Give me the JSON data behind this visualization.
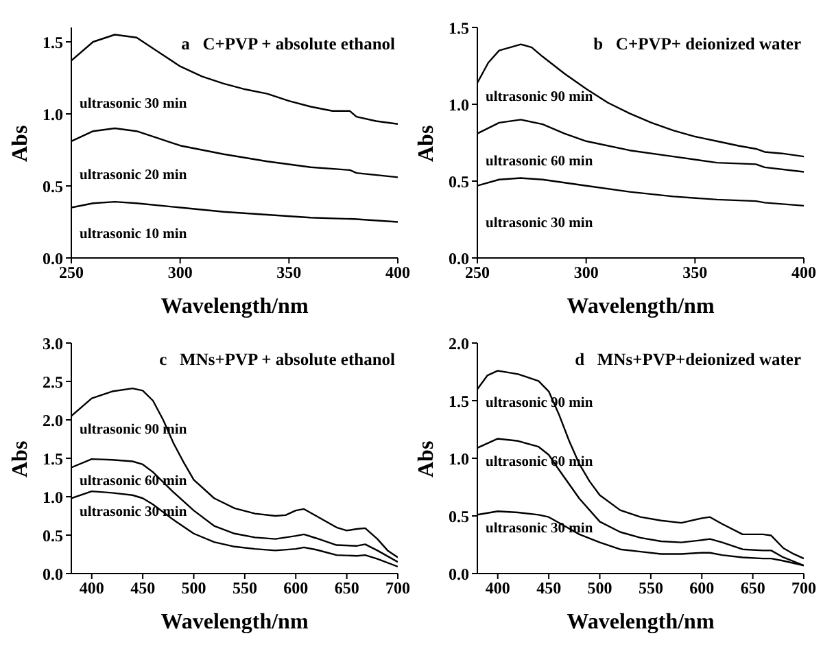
{
  "chart_data": [
    {
      "type": "line",
      "title": "a   C+PVP + absolute ethanol",
      "xlabel": "Wavelength/nm",
      "ylabel": "Abs",
      "xlim": [
        250,
        400
      ],
      "xticks": [
        250,
        300,
        350,
        400
      ],
      "ylim": [
        0,
        1.6
      ],
      "yticks": [
        {
          "value": 0,
          "label": "0.0"
        },
        {
          "value": 0.5,
          "label": "0.5"
        },
        {
          "value": 1,
          "label": "1.0"
        },
        {
          "value": 1.5,
          "label": "1.5"
        }
      ],
      "grid": false,
      "legend": false,
      "marker": "none",
      "line_style": "solid",
      "series": [
        {
          "name": "ultrasonic 30 min",
          "color": "#000000",
          "x": [
            250,
            260,
            270,
            280,
            290,
            300,
            310,
            320,
            330,
            340,
            350,
            360,
            370,
            378,
            381,
            390,
            400
          ],
          "values": [
            1.37,
            1.5,
            1.55,
            1.53,
            1.43,
            1.33,
            1.26,
            1.21,
            1.17,
            1.14,
            1.09,
            1.05,
            1.02,
            1.02,
            0.98,
            0.95,
            0.93
          ]
        },
        {
          "name": "ultrasonic 20 min",
          "color": "#000000",
          "x": [
            250,
            260,
            270,
            280,
            290,
            300,
            320,
            340,
            360,
            378,
            381,
            400
          ],
          "values": [
            0.81,
            0.88,
            0.9,
            0.88,
            0.83,
            0.78,
            0.72,
            0.67,
            0.63,
            0.61,
            0.59,
            0.56
          ]
        },
        {
          "name": "ultrasonic 10 min",
          "color": "#000000",
          "x": [
            250,
            260,
            270,
            280,
            300,
            320,
            340,
            360,
            380,
            400
          ],
          "values": [
            0.35,
            0.38,
            0.39,
            0.38,
            0.35,
            0.32,
            0.3,
            0.28,
            0.27,
            0.25
          ]
        }
      ]
    },
    {
      "type": "line",
      "title": "b   C+PVP+ deionized water",
      "xlabel": "Wavelength/nm",
      "ylabel": "Abs",
      "xlim": [
        250,
        400
      ],
      "xticks": [
        250,
        300,
        350,
        400
      ],
      "ylim": [
        0,
        1.5
      ],
      "yticks": [
        {
          "value": 0,
          "label": "0.0"
        },
        {
          "value": 0.5,
          "label": "0.5"
        },
        {
          "value": 1,
          "label": "1.0"
        },
        {
          "value": 1.5,
          "label": "1.5"
        }
      ],
      "grid": false,
      "legend": false,
      "marker": "none",
      "line_style": "solid",
      "series": [
        {
          "name": "ultrasonic 90 min",
          "color": "#000000",
          "x": [
            250,
            255,
            260,
            270,
            275,
            280,
            290,
            300,
            310,
            320,
            330,
            340,
            350,
            360,
            370,
            378,
            382,
            390,
            400
          ],
          "values": [
            1.14,
            1.27,
            1.35,
            1.39,
            1.37,
            1.31,
            1.2,
            1.1,
            1.01,
            0.94,
            0.88,
            0.83,
            0.79,
            0.76,
            0.73,
            0.71,
            0.69,
            0.68,
            0.66
          ]
        },
        {
          "name": "ultrasonic 60 min",
          "color": "#000000",
          "x": [
            250,
            260,
            270,
            280,
            290,
            300,
            320,
            340,
            360,
            378,
            382,
            400
          ],
          "values": [
            0.81,
            0.88,
            0.9,
            0.87,
            0.81,
            0.76,
            0.7,
            0.66,
            0.62,
            0.61,
            0.59,
            0.56
          ]
        },
        {
          "name": "ultrasonic 30 min",
          "color": "#000000",
          "x": [
            250,
            260,
            270,
            280,
            300,
            320,
            340,
            360,
            378,
            382,
            400
          ],
          "values": [
            0.47,
            0.51,
            0.52,
            0.51,
            0.47,
            0.43,
            0.4,
            0.38,
            0.37,
            0.36,
            0.34
          ]
        }
      ]
    },
    {
      "type": "line",
      "title": "c   MNs+PVP + absolute ethanol",
      "xlabel": "Wavelength/nm",
      "ylabel": "Abs",
      "xlim": [
        380,
        700
      ],
      "xticks": [
        400,
        450,
        500,
        550,
        600,
        650,
        700
      ],
      "ylim": [
        0,
        3
      ],
      "yticks": [
        {
          "value": 0,
          "label": "0.0"
        },
        {
          "value": 0.5,
          "label": "0.5"
        },
        {
          "value": 1,
          "label": "1.0"
        },
        {
          "value": 1.5,
          "label": "1.5"
        },
        {
          "value": 2,
          "label": "2.0"
        },
        {
          "value": 2.5,
          "label": "2.5"
        },
        {
          "value": 3,
          "label": "3.0"
        }
      ],
      "grid": false,
      "legend": false,
      "marker": "none",
      "line_style": "solid",
      "series": [
        {
          "name": "ultrasonic 90 min",
          "color": "#000000",
          "x": [
            380,
            400,
            420,
            440,
            450,
            460,
            470,
            480,
            490,
            500,
            520,
            540,
            560,
            580,
            590,
            600,
            608,
            620,
            640,
            650,
            660,
            668,
            680,
            690,
            700
          ],
          "values": [
            2.05,
            2.28,
            2.37,
            2.41,
            2.38,
            2.25,
            2.0,
            1.7,
            1.45,
            1.22,
            0.98,
            0.85,
            0.78,
            0.75,
            0.76,
            0.82,
            0.84,
            0.75,
            0.6,
            0.56,
            0.58,
            0.59,
            0.45,
            0.3,
            0.21
          ]
        },
        {
          "name": "ultrasonic 60 min",
          "color": "#000000",
          "x": [
            380,
            400,
            420,
            440,
            450,
            460,
            480,
            500,
            520,
            540,
            560,
            580,
            600,
            608,
            620,
            640,
            660,
            668,
            680,
            700
          ],
          "values": [
            1.38,
            1.49,
            1.48,
            1.46,
            1.42,
            1.32,
            1.06,
            0.82,
            0.62,
            0.52,
            0.47,
            0.45,
            0.49,
            0.51,
            0.46,
            0.37,
            0.36,
            0.38,
            0.3,
            0.15
          ]
        },
        {
          "name": "ultrasonic 30 min",
          "color": "#000000",
          "x": [
            380,
            400,
            420,
            440,
            450,
            460,
            480,
            500,
            520,
            540,
            560,
            580,
            600,
            608,
            620,
            640,
            660,
            668,
            680,
            700
          ],
          "values": [
            0.98,
            1.07,
            1.05,
            1.02,
            0.98,
            0.9,
            0.7,
            0.52,
            0.41,
            0.35,
            0.32,
            0.3,
            0.32,
            0.34,
            0.31,
            0.24,
            0.23,
            0.24,
            0.19,
            0.09
          ]
        }
      ]
    },
    {
      "type": "line",
      "title": "d   MNs+PVP+deionized water",
      "xlabel": "Wavelength/nm",
      "ylabel": "Abs",
      "xlim": [
        380,
        700
      ],
      "xticks": [
        400,
        450,
        500,
        550,
        600,
        650,
        700
      ],
      "ylim": [
        0,
        2
      ],
      "yticks": [
        {
          "value": 0,
          "label": "0.0"
        },
        {
          "value": 0.5,
          "label": "0.5"
        },
        {
          "value": 1,
          "label": "1.0"
        },
        {
          "value": 1.5,
          "label": "1.5"
        },
        {
          "value": 2,
          "label": "2.0"
        }
      ],
      "grid": false,
      "legend": false,
      "marker": "none",
      "line_style": "solid",
      "series": [
        {
          "name": "ultrasonic 90 min",
          "color": "#000000",
          "x": [
            380,
            390,
            400,
            420,
            440,
            450,
            460,
            470,
            480,
            490,
            500,
            520,
            540,
            560,
            580,
            600,
            608,
            620,
            640,
            660,
            668,
            680,
            690,
            700
          ],
          "values": [
            1.6,
            1.72,
            1.76,
            1.73,
            1.67,
            1.58,
            1.38,
            1.15,
            0.95,
            0.8,
            0.68,
            0.55,
            0.49,
            0.46,
            0.44,
            0.48,
            0.49,
            0.43,
            0.34,
            0.34,
            0.33,
            0.22,
            0.17,
            0.13
          ]
        },
        {
          "name": "ultrasonic 60 min",
          "color": "#000000",
          "x": [
            380,
            400,
            420,
            440,
            450,
            460,
            480,
            500,
            520,
            540,
            560,
            580,
            600,
            608,
            620,
            640,
            660,
            668,
            680,
            700
          ],
          "values": [
            1.09,
            1.17,
            1.15,
            1.1,
            1.03,
            0.9,
            0.65,
            0.45,
            0.36,
            0.31,
            0.28,
            0.27,
            0.29,
            0.3,
            0.27,
            0.21,
            0.2,
            0.2,
            0.14,
            0.07
          ]
        },
        {
          "name": "ultrasonic 30 min",
          "color": "#000000",
          "x": [
            380,
            400,
            420,
            440,
            450,
            460,
            480,
            500,
            520,
            540,
            560,
            580,
            600,
            608,
            620,
            640,
            660,
            668,
            680,
            700
          ],
          "values": [
            0.51,
            0.54,
            0.53,
            0.51,
            0.49,
            0.44,
            0.34,
            0.27,
            0.21,
            0.19,
            0.17,
            0.17,
            0.18,
            0.18,
            0.16,
            0.14,
            0.13,
            0.13,
            0.11,
            0.07
          ]
        }
      ]
    }
  ]
}
